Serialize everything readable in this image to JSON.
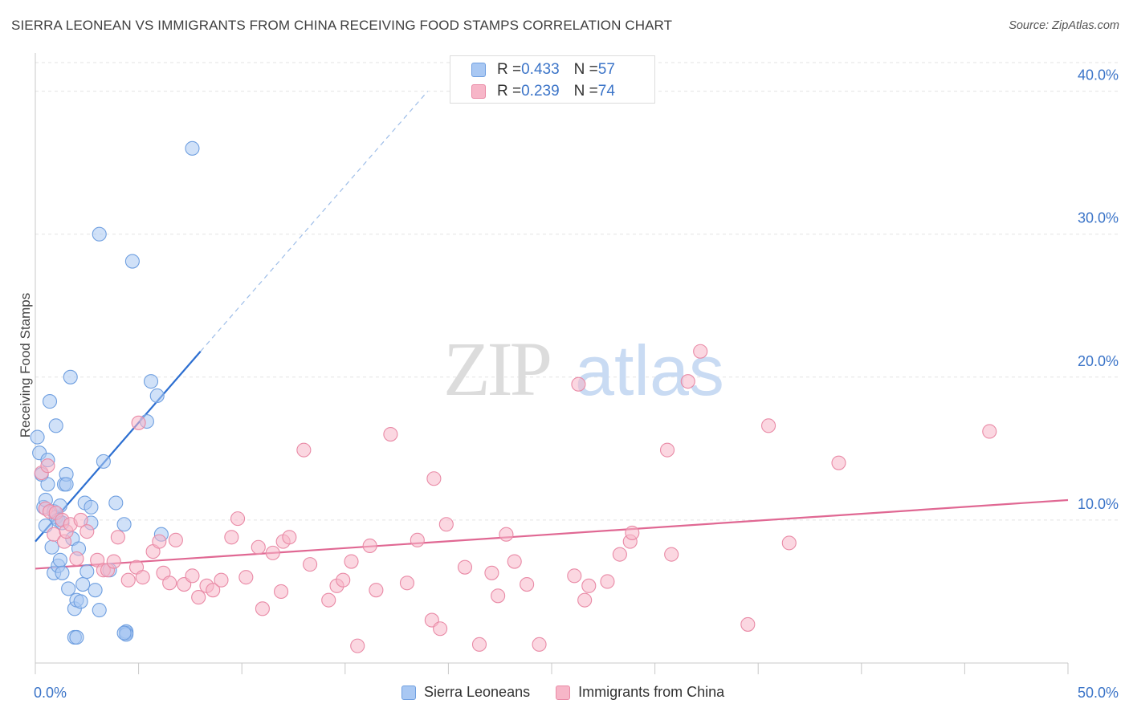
{
  "title": "SIERRA LEONEAN VS IMMIGRANTS FROM CHINA RECEIVING FOOD STAMPS CORRELATION CHART",
  "source": "Source: ZipAtlas.com",
  "watermark": {
    "part1": "ZIP",
    "part2": "atlas"
  },
  "legend_top": {
    "rows": [
      {
        "r_label": "R = ",
        "r_value": "0.433",
        "n_label": "N = ",
        "n_value": "57",
        "color": "#a9c8f3"
      },
      {
        "r_label": "R = ",
        "r_value": "0.239",
        "n_label": "N = ",
        "n_value": "74",
        "color": "#f7b6c8"
      }
    ]
  },
  "legend_bottom": {
    "items": [
      {
        "label": "Sierra Leoneans",
        "color": "#a9c8f3"
      },
      {
        "label": "Immigrants from China",
        "color": "#f7b6c8"
      }
    ]
  },
  "chart_data": {
    "type": "scatter",
    "title": "SIERRA LEONEAN VS IMMIGRANTS FROM CHINA RECEIVING FOOD STAMPS CORRELATION CHART",
    "xlabel": "",
    "ylabel": "Receiving Food Stamps",
    "xlim": [
      0,
      50
    ],
    "ylim": [
      0,
      42
    ],
    "x_tick_labels": [
      {
        "value": 0,
        "label": "0.0%"
      },
      {
        "value": 50,
        "label": "50.0%"
      }
    ],
    "y_ticks": [
      {
        "value": 10,
        "label": "10.0%"
      },
      {
        "value": 20,
        "label": "20.0%"
      },
      {
        "value": 30,
        "label": "30.0%"
      },
      {
        "value": 40,
        "label": "40.0%"
      }
    ],
    "series": [
      {
        "name": "Sierra Leoneans",
        "color": "#a9c8f3",
        "stroke": "#6f9fe0",
        "trend_color": "#2d6fd1",
        "trend": {
          "x0": 0,
          "y0": 8.5,
          "x1": 8.0,
          "y1": 21.8,
          "dash_x1": 19,
          "dash_y1": 40.0
        },
        "points": [
          [
            0.1,
            15.8
          ],
          [
            0.2,
            14.7
          ],
          [
            0.3,
            13.2
          ],
          [
            0.4,
            10.9
          ],
          [
            0.5,
            11.4
          ],
          [
            0.5,
            9.6
          ],
          [
            0.6,
            12.5
          ],
          [
            0.6,
            14.2
          ],
          [
            0.7,
            18.3
          ],
          [
            0.8,
            8.1
          ],
          [
            0.9,
            10.6
          ],
          [
            0.9,
            6.3
          ],
          [
            1.0,
            16.6
          ],
          [
            1.0,
            10.2
          ],
          [
            1.1,
            6.8
          ],
          [
            1.1,
            10.0
          ],
          [
            1.2,
            7.2
          ],
          [
            1.2,
            11.0
          ],
          [
            1.3,
            9.8
          ],
          [
            1.3,
            6.3
          ],
          [
            1.4,
            12.5
          ],
          [
            1.5,
            13.2
          ],
          [
            1.5,
            12.5
          ],
          [
            1.6,
            5.2
          ],
          [
            1.7,
            20.0
          ],
          [
            1.8,
            8.7
          ],
          [
            1.9,
            3.8
          ],
          [
            1.9,
            1.8
          ],
          [
            2.0,
            4.4
          ],
          [
            2.0,
            1.8
          ],
          [
            2.1,
            8.0
          ],
          [
            2.2,
            4.3
          ],
          [
            2.3,
            5.5
          ],
          [
            2.4,
            11.2
          ],
          [
            2.5,
            6.4
          ],
          [
            2.7,
            9.8
          ],
          [
            2.7,
            10.9
          ],
          [
            2.9,
            5.1
          ],
          [
            3.1,
            3.7
          ],
          [
            3.3,
            14.1
          ],
          [
            3.6,
            6.5
          ],
          [
            3.9,
            11.2
          ],
          [
            3.1,
            30.0
          ],
          [
            4.3,
            9.7
          ],
          [
            4.4,
            2.1
          ],
          [
            4.4,
            2.2
          ],
          [
            4.4,
            2.0
          ],
          [
            4.3,
            2.1
          ],
          [
            4.4,
            2.2
          ],
          [
            4.4,
            2.1
          ],
          [
            4.4,
            2.0
          ],
          [
            4.4,
            2.1
          ],
          [
            4.4,
            2.0
          ],
          [
            4.4,
            2.2
          ],
          [
            4.4,
            2.1
          ],
          [
            4.4,
            2.0
          ],
          [
            4.4,
            2.1
          ]
        ],
        "extra_points": [
          [
            4.4,
            2.1
          ],
          [
            4.3,
            2.0
          ],
          [
            4.4,
            2.1
          ],
          [
            4.4,
            2.1
          ],
          [
            4.4,
            2.1
          ],
          [
            4.4,
            2.1
          ]
        ],
        "outliers": [
          [
            7.6,
            36.0
          ],
          [
            4.7,
            28.1
          ],
          [
            5.4,
            16.9
          ],
          [
            5.6,
            19.7
          ],
          [
            5.9,
            18.7
          ],
          [
            6.1,
            9.0
          ]
        ]
      },
      {
        "name": "Immigrants from China",
        "color": "#f7b6c8",
        "stroke": "#e98aa6",
        "trend_color": "#e06893",
        "trend": {
          "x0": 0,
          "y0": 6.6,
          "x1": 50,
          "y1": 11.4
        },
        "points": [
          [
            0.3,
            13.3
          ],
          [
            0.5,
            10.8
          ],
          [
            0.6,
            13.8
          ],
          [
            0.7,
            10.6
          ],
          [
            0.9,
            9.0
          ],
          [
            1.0,
            10.5
          ],
          [
            1.3,
            10.0
          ],
          [
            1.4,
            8.5
          ],
          [
            1.5,
            9.2
          ],
          [
            1.7,
            9.7
          ],
          [
            2.0,
            7.3
          ],
          [
            2.2,
            10.0
          ],
          [
            2.5,
            9.2
          ],
          [
            3.0,
            7.2
          ],
          [
            3.3,
            6.5
          ],
          [
            3.5,
            6.5
          ],
          [
            3.8,
            7.1
          ],
          [
            4.0,
            8.8
          ],
          [
            4.5,
            5.8
          ],
          [
            4.9,
            6.7
          ],
          [
            5.0,
            16.8
          ],
          [
            5.2,
            6.0
          ],
          [
            5.7,
            7.8
          ],
          [
            6.0,
            8.5
          ],
          [
            6.2,
            6.3
          ],
          [
            6.5,
            5.6
          ],
          [
            6.8,
            8.6
          ],
          [
            7.2,
            5.5
          ],
          [
            7.6,
            6.1
          ],
          [
            7.9,
            4.6
          ],
          [
            8.3,
            5.4
          ],
          [
            8.6,
            5.1
          ],
          [
            9.0,
            5.8
          ],
          [
            9.5,
            8.8
          ],
          [
            9.8,
            10.1
          ],
          [
            10.2,
            6.0
          ],
          [
            10.8,
            8.1
          ],
          [
            11.0,
            3.8
          ],
          [
            11.5,
            7.7
          ],
          [
            11.9,
            5.0
          ],
          [
            12.0,
            8.5
          ],
          [
            12.3,
            8.8
          ],
          [
            13.0,
            14.9
          ],
          [
            13.3,
            6.9
          ],
          [
            14.2,
            4.4
          ],
          [
            14.6,
            5.4
          ],
          [
            14.9,
            5.8
          ],
          [
            15.3,
            7.1
          ],
          [
            15.6,
            1.2
          ],
          [
            16.2,
            8.2
          ],
          [
            16.5,
            5.1
          ],
          [
            17.2,
            16.0
          ],
          [
            18.0,
            5.6
          ],
          [
            18.5,
            8.6
          ],
          [
            19.2,
            3.0
          ],
          [
            19.3,
            12.9
          ],
          [
            19.6,
            2.4
          ],
          [
            19.9,
            9.7
          ],
          [
            20.8,
            6.7
          ],
          [
            21.5,
            1.3
          ],
          [
            22.1,
            6.3
          ],
          [
            22.4,
            4.7
          ],
          [
            22.8,
            9.0
          ],
          [
            23.2,
            7.1
          ],
          [
            23.8,
            5.5
          ],
          [
            24.4,
            1.3
          ],
          [
            26.1,
            6.1
          ],
          [
            26.3,
            19.5
          ],
          [
            26.6,
            4.4
          ],
          [
            26.8,
            5.4
          ],
          [
            27.7,
            5.7
          ],
          [
            28.3,
            7.6
          ],
          [
            28.8,
            8.5
          ],
          [
            28.9,
            9.1
          ],
          [
            30.6,
            14.9
          ],
          [
            30.8,
            7.6
          ],
          [
            31.6,
            19.7
          ],
          [
            32.2,
            21.8
          ],
          [
            34.5,
            2.7
          ],
          [
            35.5,
            16.6
          ],
          [
            36.5,
            8.4
          ],
          [
            38.9,
            14.0
          ],
          [
            46.2,
            16.2
          ]
        ]
      }
    ]
  }
}
